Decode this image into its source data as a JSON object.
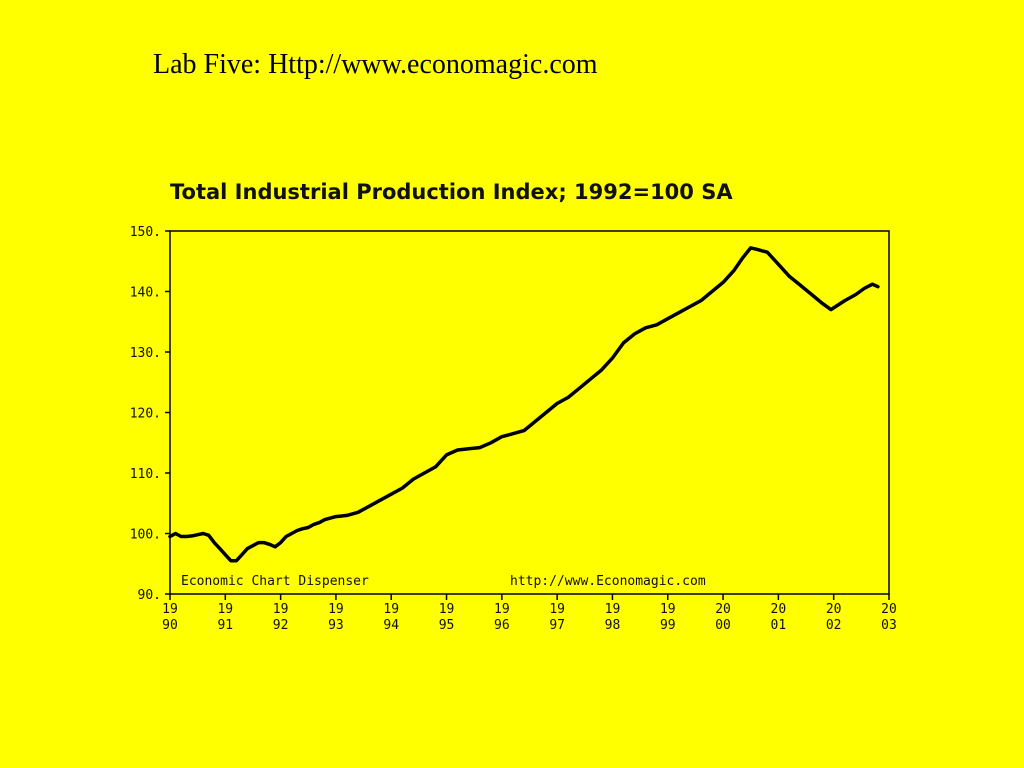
{
  "slide": {
    "title": "Lab Five: Http://www.economagic.com"
  },
  "chart_data": {
    "type": "line",
    "title": "Total Industrial Production Index; 1992=100 SA",
    "xlabel": "",
    "ylabel": "",
    "xlim": [
      1990,
      2003
    ],
    "ylim": [
      90,
      150
    ],
    "grid": false,
    "background": "#FFFF00",
    "line_color": "#000000",
    "y_ticks": [
      "150.",
      "140.",
      "130.",
      "120.",
      "110.",
      "100.",
      "90."
    ],
    "y_tick_values": [
      150,
      140,
      130,
      120,
      110,
      100,
      90
    ],
    "x_ticks": [
      {
        "value": 1990,
        "top": "19",
        "bottom": "90"
      },
      {
        "value": 1991,
        "top": "19",
        "bottom": "91"
      },
      {
        "value": 1992,
        "top": "19",
        "bottom": "92"
      },
      {
        "value": 1993,
        "top": "19",
        "bottom": "93"
      },
      {
        "value": 1994,
        "top": "19",
        "bottom": "94"
      },
      {
        "value": 1995,
        "top": "19",
        "bottom": "95"
      },
      {
        "value": 1996,
        "top": "19",
        "bottom": "96"
      },
      {
        "value": 1997,
        "top": "19",
        "bottom": "97"
      },
      {
        "value": 1998,
        "top": "19",
        "bottom": "98"
      },
      {
        "value": 1999,
        "top": "19",
        "bottom": "99"
      },
      {
        "value": 2000,
        "top": "20",
        "bottom": "00"
      },
      {
        "value": 2001,
        "top": "20",
        "bottom": "01"
      },
      {
        "value": 2002,
        "top": "20",
        "bottom": "02"
      },
      {
        "value": 2003,
        "top": "20",
        "bottom": "03"
      }
    ],
    "annotations": {
      "left": "Economic Chart Dispenser",
      "right": "http://www.Economagic.com"
    },
    "series": [
      {
        "x": [
          1990.0,
          1990.1,
          1990.2,
          1990.3,
          1990.4,
          1990.5,
          1990.6,
          1990.7,
          1990.8,
          1990.9,
          1991.0,
          1991.1,
          1991.2,
          1991.3,
          1991.4,
          1991.5,
          1991.6,
          1991.7,
          1991.8,
          1991.9,
          1992.0,
          1992.1,
          1992.2,
          1992.3,
          1992.4,
          1992.5,
          1992.6,
          1992.7,
          1992.8,
          1993.0,
          1993.2,
          1993.4,
          1993.6,
          1993.8,
          1994.0,
          1994.2,
          1994.4,
          1994.6,
          1994.8,
          1995.0,
          1995.2,
          1995.4,
          1995.6,
          1995.8,
          1996.0,
          1996.2,
          1996.4,
          1996.6,
          1996.8,
          1997.0,
          1997.2,
          1997.4,
          1997.6,
          1997.8,
          1998.0,
          1998.2,
          1998.4,
          1998.6,
          1998.8,
          1999.0,
          1999.2,
          1999.4,
          1999.6,
          1999.8,
          2000.0,
          2000.2,
          2000.35,
          2000.5,
          2000.6,
          2000.8,
          2001.0,
          2001.2,
          2001.4,
          2001.6,
          2001.8,
          2001.95,
          2002.2,
          2002.4,
          2002.55,
          2002.7,
          2002.8
        ],
        "y": [
          99.5,
          100.0,
          99.5,
          99.5,
          99.6,
          99.8,
          100.0,
          99.7,
          98.5,
          97.5,
          96.5,
          95.5,
          95.5,
          96.5,
          97.5,
          98.0,
          98.5,
          98.5,
          98.2,
          97.8,
          98.5,
          99.5,
          100.0,
          100.5,
          100.8,
          101.0,
          101.5,
          101.8,
          102.3,
          102.8,
          103.0,
          103.5,
          104.5,
          105.5,
          106.5,
          107.5,
          109.0,
          110.0,
          111.0,
          113.0,
          113.8,
          114.0,
          114.2,
          115.0,
          116.0,
          116.5,
          117.0,
          118.5,
          120.0,
          121.5,
          122.5,
          124.0,
          125.5,
          127.0,
          129.0,
          131.5,
          133.0,
          134.0,
          134.5,
          135.5,
          136.5,
          137.5,
          138.5,
          140.0,
          141.5,
          143.5,
          145.5,
          147.2,
          147.0,
          146.5,
          144.5,
          142.5,
          141.0,
          139.5,
          138.0,
          137.0,
          138.5,
          139.5,
          140.5,
          141.2,
          140.8
        ]
      }
    ]
  }
}
